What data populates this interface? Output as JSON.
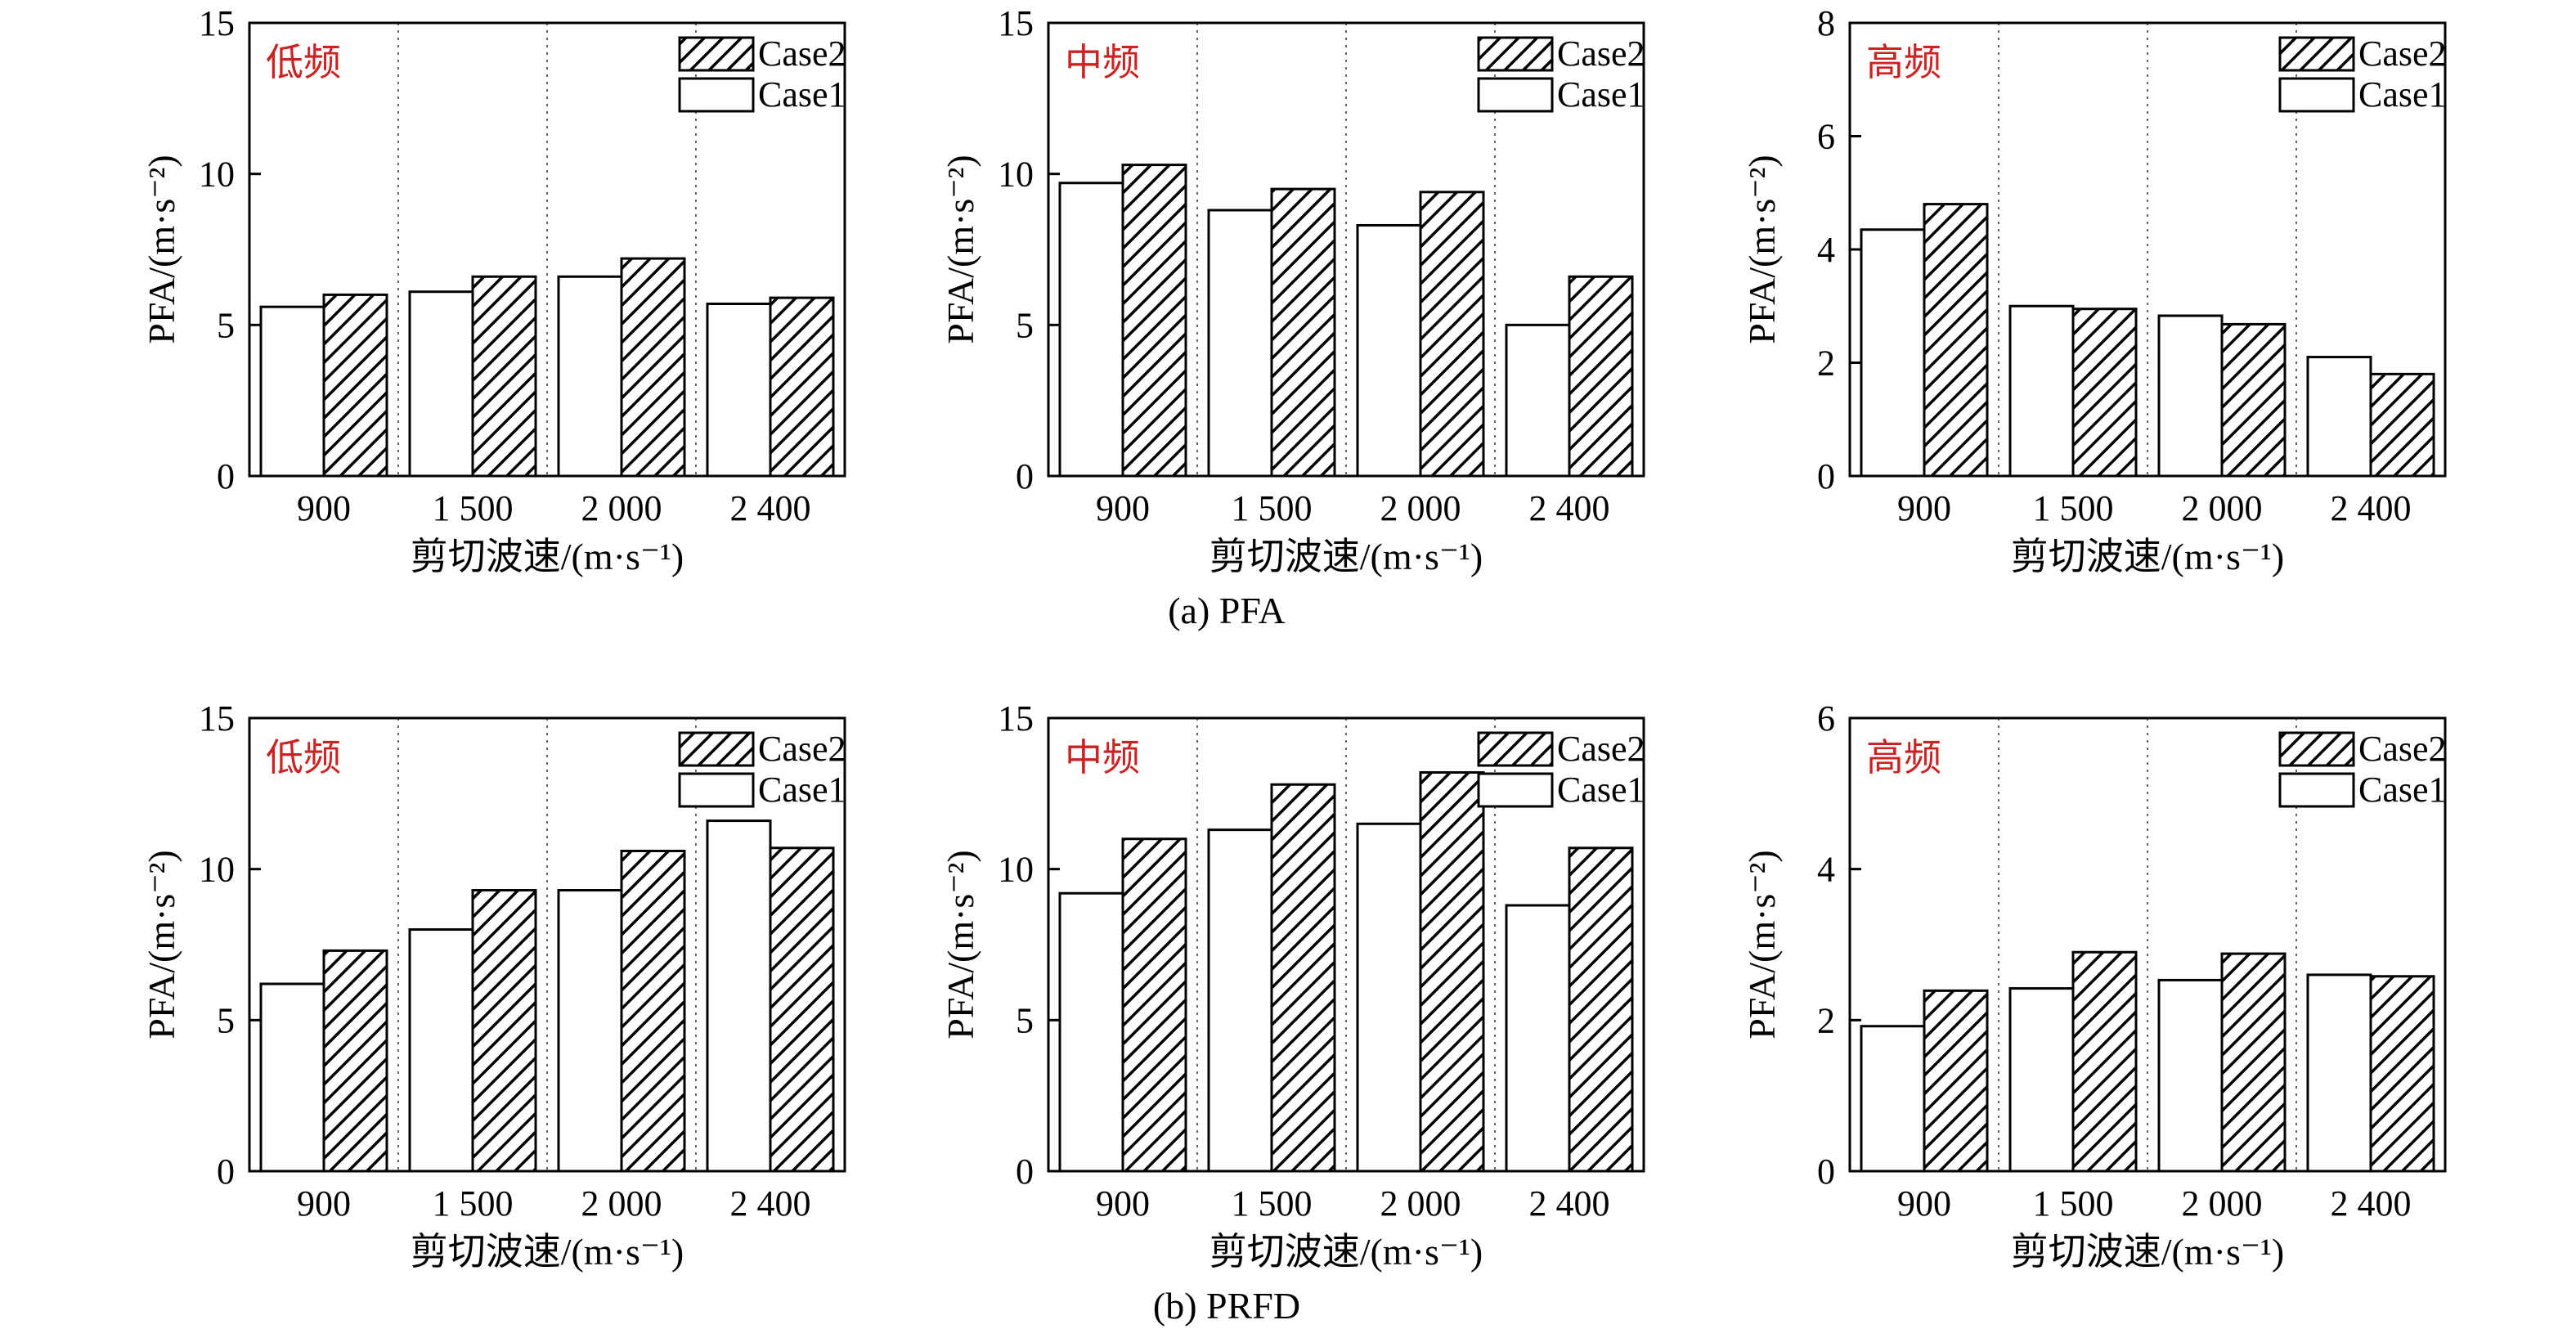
{
  "colors": {
    "band_label": "#cc2222",
    "axis": "#000000",
    "hatch": "#000000",
    "case1_fill": "#ffffff"
  },
  "chart_data": [
    {
      "type": "bar",
      "row": 0,
      "band": "低频",
      "categories": [
        "900",
        "1 500",
        "2 000",
        "2 400"
      ],
      "xlabel": "剪切波速/(m·s⁻¹)",
      "ylabel": "PFA/(m·s⁻²)",
      "ylim": [
        0,
        15
      ],
      "yticks": [
        "0",
        "5",
        "10",
        "15"
      ],
      "series": [
        {
          "name": "Case1",
          "values": [
            5.6,
            6.1,
            6.6,
            5.7
          ]
        },
        {
          "name": "Case2",
          "values": [
            6.0,
            6.6,
            7.2,
            5.9
          ]
        }
      ],
      "legend": "top-right",
      "grid": "vertical-dotted"
    },
    {
      "type": "bar",
      "row": 0,
      "band": "中频",
      "categories": [
        "900",
        "1 500",
        "2 000",
        "2 400"
      ],
      "xlabel": "剪切波速/(m·s⁻¹)",
      "ylabel": "PFA/(m·s⁻²)",
      "ylim": [
        0,
        15
      ],
      "yticks": [
        "0",
        "5",
        "10",
        "15"
      ],
      "series": [
        {
          "name": "Case1",
          "values": [
            9.7,
            8.8,
            8.3,
            5.0
          ]
        },
        {
          "name": "Case2",
          "values": [
            10.3,
            9.5,
            9.4,
            6.6
          ]
        }
      ],
      "legend": "top-right",
      "grid": "vertical-dotted"
    },
    {
      "type": "bar",
      "row": 0,
      "band": "高频",
      "categories": [
        "900",
        "1 500",
        "2 000",
        "2 400"
      ],
      "xlabel": "剪切波速/(m·s⁻¹)",
      "ylabel": "PFA/(m·s⁻²)",
      "ylim": [
        0,
        8
      ],
      "yticks": [
        "0",
        "2",
        "4",
        "6",
        "8"
      ],
      "series": [
        {
          "name": "Case1",
          "values": [
            4.35,
            3.0,
            2.83,
            2.1
          ]
        },
        {
          "name": "Case2",
          "values": [
            4.8,
            2.95,
            2.68,
            1.8
          ]
        }
      ],
      "legend": "top-right",
      "grid": "vertical-dotted"
    },
    {
      "type": "bar",
      "row": 1,
      "band": "低频",
      "categories": [
        "900",
        "1 500",
        "2 000",
        "2 400"
      ],
      "xlabel": "剪切波速/(m·s⁻¹)",
      "ylabel": "PFA/(m·s⁻²)",
      "ylim": [
        0,
        15
      ],
      "yticks": [
        "0",
        "5",
        "10",
        "15"
      ],
      "series": [
        {
          "name": "Case1",
          "values": [
            6.2,
            8.0,
            9.3,
            11.6
          ]
        },
        {
          "name": "Case2",
          "values": [
            7.3,
            9.3,
            10.6,
            10.7
          ]
        }
      ],
      "legend": "top-right",
      "grid": "vertical-dotted"
    },
    {
      "type": "bar",
      "row": 1,
      "band": "中频",
      "categories": [
        "900",
        "1 500",
        "2 000",
        "2 400"
      ],
      "xlabel": "剪切波速/(m·s⁻¹)",
      "ylabel": "PFA/(m·s⁻²)",
      "ylim": [
        0,
        15
      ],
      "yticks": [
        "0",
        "5",
        "10",
        "15"
      ],
      "series": [
        {
          "name": "Case1",
          "values": [
            9.2,
            11.3,
            11.5,
            8.8
          ]
        },
        {
          "name": "Case2",
          "values": [
            11.0,
            12.8,
            13.2,
            10.7
          ]
        }
      ],
      "legend": "top-right",
      "grid": "vertical-dotted"
    },
    {
      "type": "bar",
      "row": 1,
      "band": "高频",
      "categories": [
        "900",
        "1 500",
        "2 000",
        "2 400"
      ],
      "xlabel": "剪切波速/(m·s⁻¹)",
      "ylabel": "PFA/(m·s⁻²)",
      "ylim": [
        0,
        6
      ],
      "yticks": [
        "0",
        "2",
        "4",
        "6"
      ],
      "series": [
        {
          "name": "Case1",
          "values": [
            1.92,
            2.42,
            2.53,
            2.6
          ]
        },
        {
          "name": "Case2",
          "values": [
            2.39,
            2.9,
            2.88,
            2.58
          ]
        }
      ],
      "legend": "top-right",
      "grid": "vertical-dotted"
    }
  ],
  "captions": [
    "(a) PFA",
    "(b) PRFD"
  ]
}
